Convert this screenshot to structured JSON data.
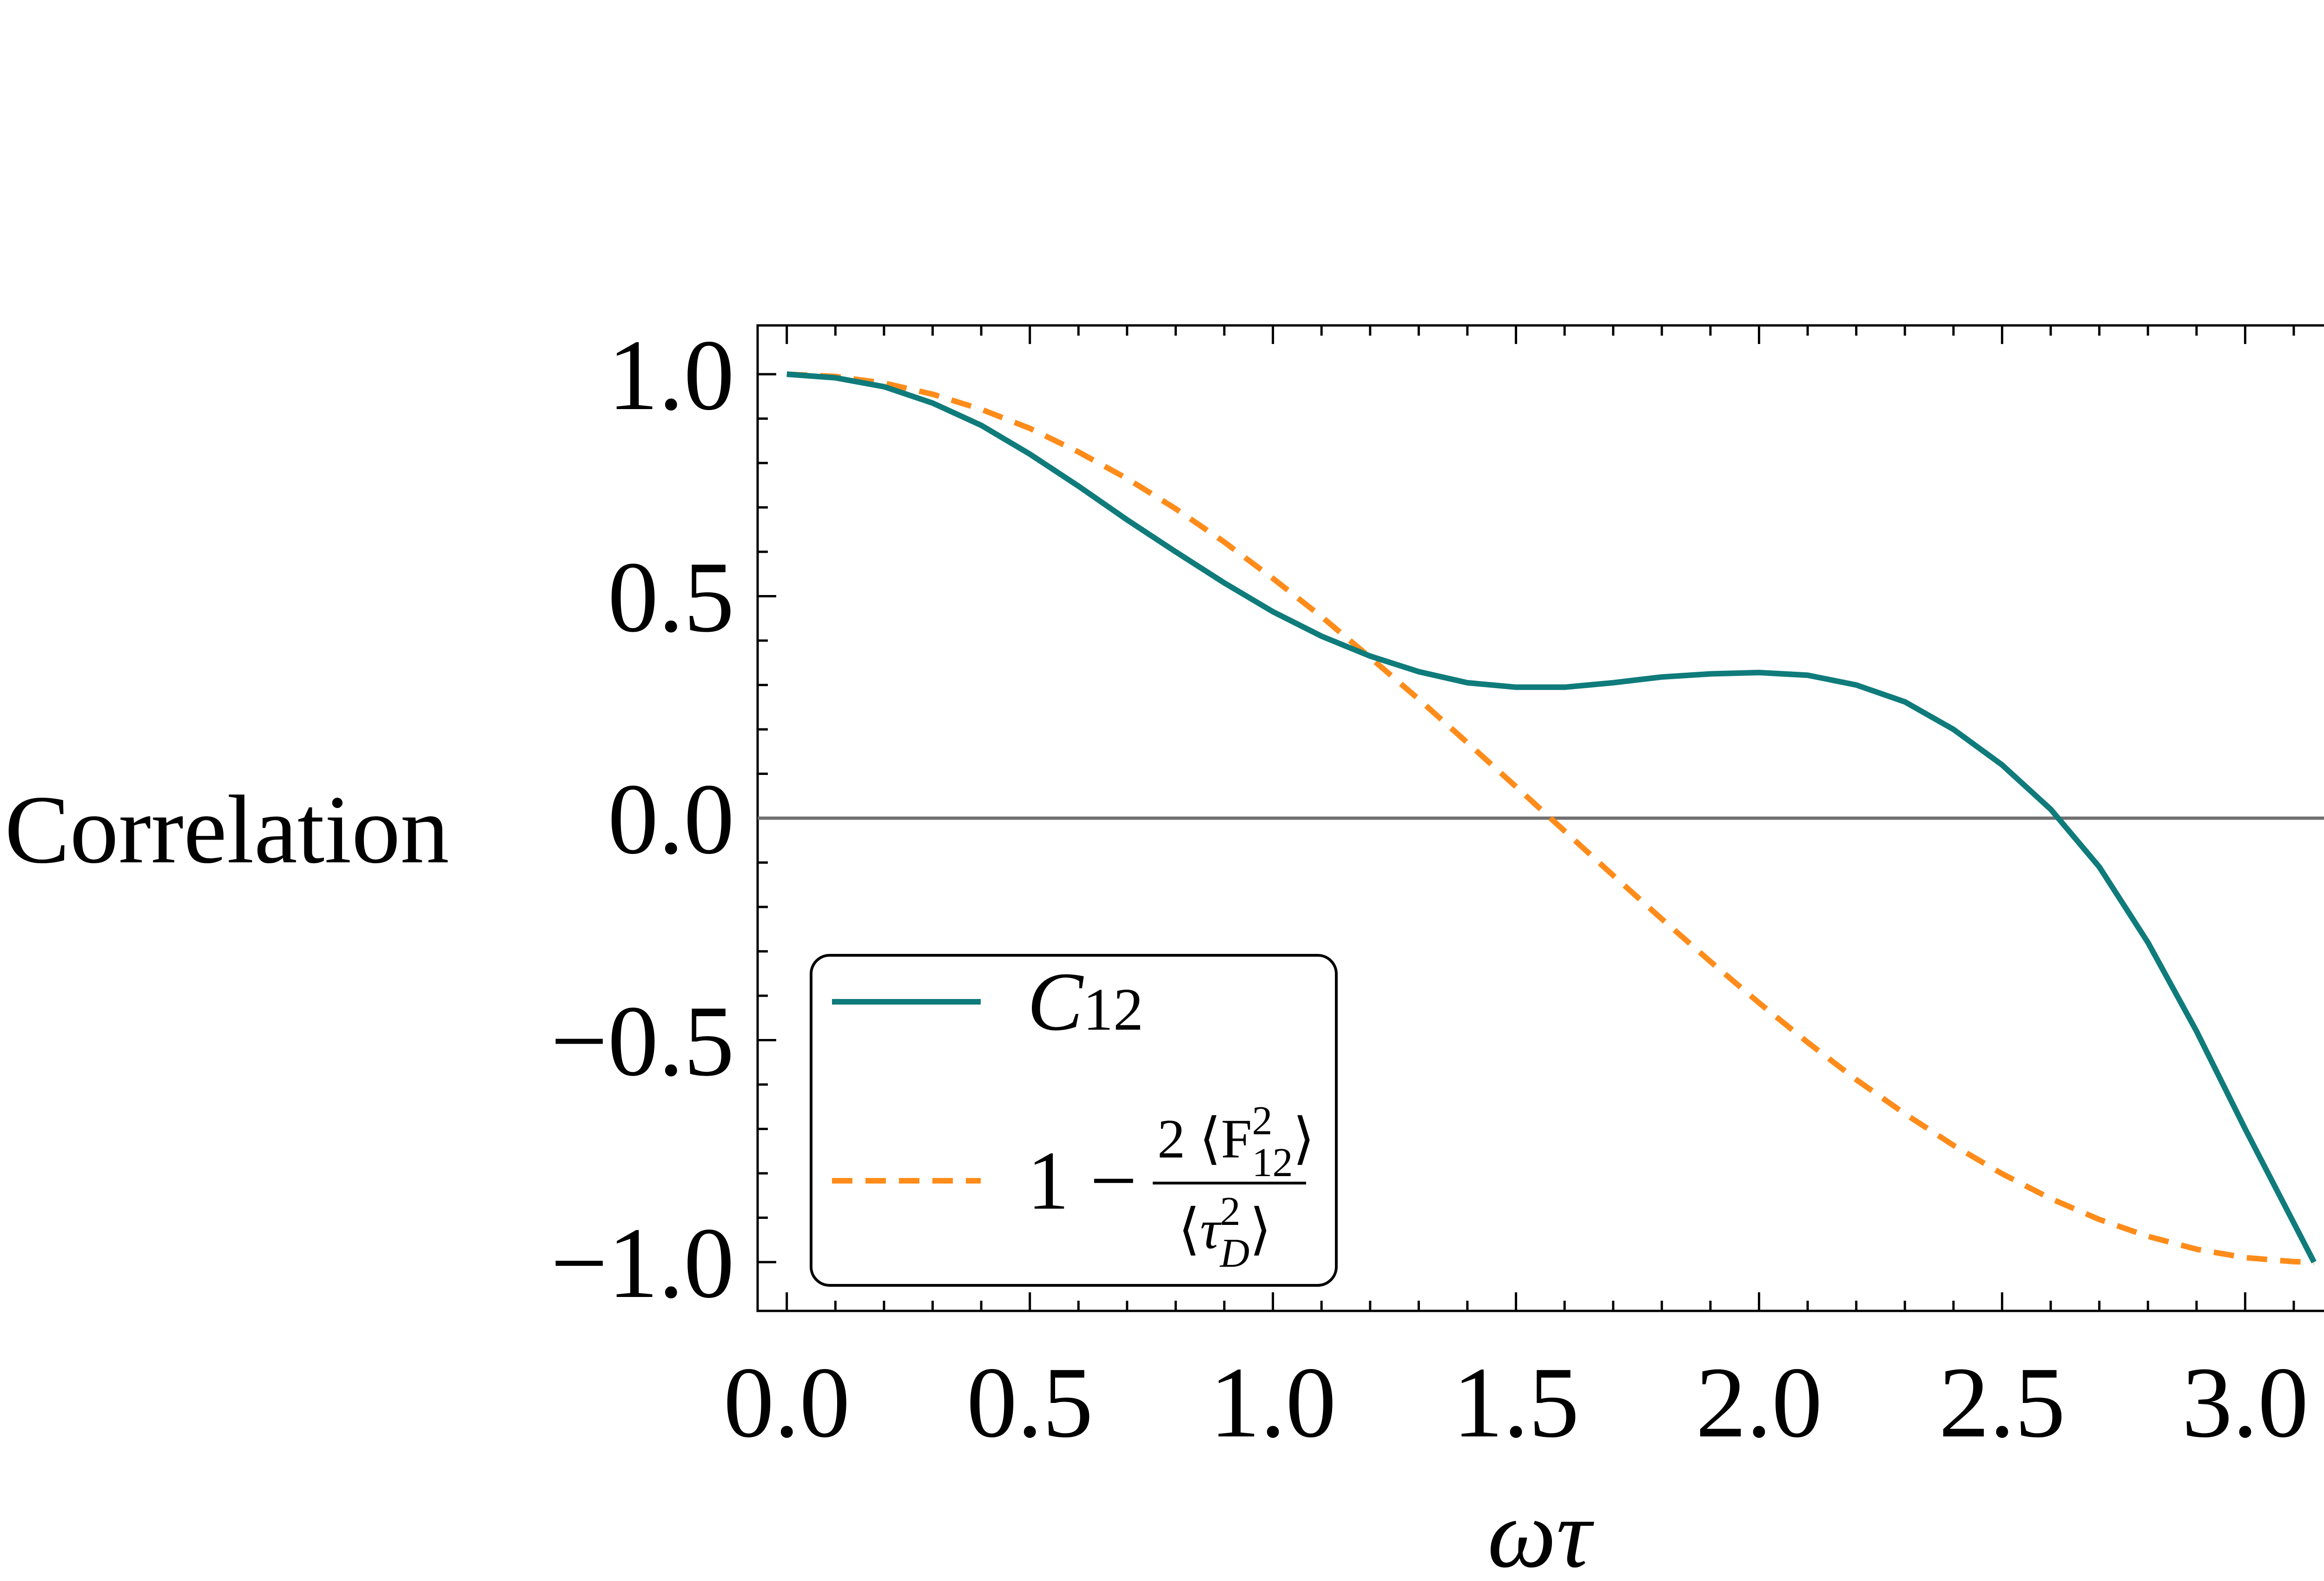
{
  "chart_data": {
    "type": "line",
    "title": "",
    "xlabel_parts": [
      "ω",
      "τ"
    ],
    "ylabel": "Correlation",
    "xlim": [
      -0.06,
      3.21
    ],
    "ylim": [
      -1.11,
      1.11
    ],
    "x_ticks": [
      0.0,
      0.5,
      1.0,
      1.5,
      2.0,
      2.5,
      3.0
    ],
    "x_tick_labels": [
      "0.0",
      "0.5",
      "1.0",
      "1.5",
      "2.0",
      "2.5",
      "3.0"
    ],
    "y_ticks": [
      -1.0,
      -0.5,
      0.0,
      0.5,
      1.0
    ],
    "y_tick_labels": [
      "−1.0",
      "−0.5",
      "0.0",
      "0.5",
      "1.0"
    ],
    "reference_line_y": 0.0,
    "legend_position": "bottom-left",
    "colors": {
      "c12": "#0f7b7b",
      "approx": "#ff8c1a",
      "zero_line": "#707070",
      "frame": "#000000"
    },
    "series": [
      {
        "name": "C12",
        "style": "solid",
        "x": [
          0.0,
          0.1,
          0.2,
          0.3,
          0.4,
          0.5,
          0.6,
          0.7,
          0.8,
          0.9,
          1.0,
          1.1,
          1.2,
          1.3,
          1.4,
          1.5,
          1.6,
          1.7,
          1.8,
          1.9,
          2.0,
          2.1,
          2.2,
          2.3,
          2.4,
          2.5,
          2.6,
          2.7,
          2.8,
          2.9,
          3.0,
          3.1416
        ],
        "values": [
          1.0,
          0.992,
          0.972,
          0.935,
          0.885,
          0.82,
          0.748,
          0.672,
          0.6,
          0.53,
          0.465,
          0.41,
          0.365,
          0.33,
          0.305,
          0.295,
          0.295,
          0.305,
          0.318,
          0.325,
          0.328,
          0.322,
          0.3,
          0.262,
          0.2,
          0.12,
          0.02,
          -0.11,
          -0.28,
          -0.48,
          -0.7,
          -1.0
        ]
      },
      {
        "name": "1 − 2⟨F12²⟩/⟨τD²⟩",
        "style": "dashed",
        "x": [
          0.0,
          0.1,
          0.2,
          0.3,
          0.4,
          0.5,
          0.6,
          0.7,
          0.8,
          0.9,
          1.0,
          1.1,
          1.2,
          1.3,
          1.4,
          1.5,
          1.6,
          1.7,
          1.8,
          1.9,
          2.0,
          2.1,
          2.2,
          2.3,
          2.4,
          2.5,
          2.6,
          2.7,
          2.8,
          2.9,
          3.0,
          3.1,
          3.1416
        ],
        "values": [
          1.0,
          0.995,
          0.98,
          0.955,
          0.921,
          0.878,
          0.825,
          0.765,
          0.697,
          0.622,
          0.54,
          0.454,
          0.362,
          0.268,
          0.17,
          0.071,
          -0.029,
          -0.129,
          -0.227,
          -0.323,
          -0.416,
          -0.505,
          -0.589,
          -0.666,
          -0.737,
          -0.801,
          -0.857,
          -0.904,
          -0.942,
          -0.971,
          -0.99,
          -0.999,
          -1.0
        ]
      }
    ],
    "legend": {
      "c12_main": "C",
      "c12_sub": "12",
      "approx_prefix": "1 −",
      "approx_numerator": "2 ⟨F",
      "approx_numerator_sup": "2",
      "approx_numerator_sub": "12",
      "approx_numerator_close": "⟩",
      "approx_denominator_open": "⟨",
      "approx_denominator_tau": "τ",
      "approx_denominator_sup": "2",
      "approx_denominator_sub": "D",
      "approx_denominator_close": "⟩"
    }
  }
}
